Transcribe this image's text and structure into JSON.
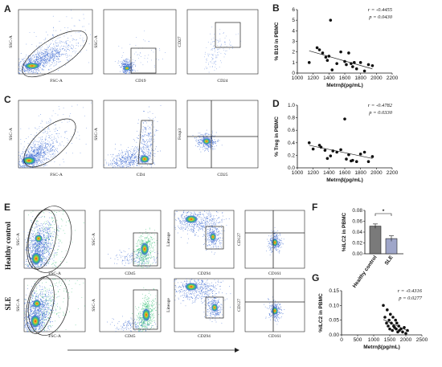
{
  "panels": {
    "A": {
      "letter": "A",
      "plots": [
        {
          "xlabel": "FSC-A",
          "ylabel": "SSC-A"
        },
        {
          "xlabel": "CD19",
          "ylabel": "SSC-A"
        },
        {
          "xlabel": "CD24",
          "ylabel": "CD27"
        }
      ]
    },
    "C": {
      "letter": "C",
      "plots": [
        {
          "xlabel": "FSC-A",
          "ylabel": "SSC-A"
        },
        {
          "xlabel": "CD4",
          "ylabel": "SSC-A"
        },
        {
          "xlabel": "CD25",
          "ylabel": "Foxp3"
        }
      ]
    },
    "E": {
      "letter": "E",
      "row_labels": [
        "Healthy control",
        "SLE"
      ],
      "plots": [
        {
          "xlabel": "FSC-A",
          "ylabel": "SSC-A"
        },
        {
          "xlabel": "CD45",
          "ylabel": "SSC-A"
        },
        {
          "xlabel": "CD294",
          "ylabel": "Lineage"
        },
        {
          "xlabel": "CD161",
          "ylabel": "CD127"
        }
      ]
    },
    "B": {
      "letter": "B"
    },
    "D": {
      "letter": "D"
    },
    "F": {
      "letter": "F"
    },
    "G": {
      "letter": "G"
    }
  },
  "chart_data": [
    {
      "panel": "B",
      "type": "scatter",
      "xlabel": "Metrnβ(pg/mL)",
      "ylabel": "% B10 in PBMC",
      "xlim": [
        1000,
        2200
      ],
      "ylim": [
        0,
        6
      ],
      "xticks": [
        1000,
        1200,
        1400,
        1600,
        1800,
        2000,
        2200
      ],
      "yticks": [
        0,
        1,
        2,
        3,
        4,
        5,
        6
      ],
      "annotation": {
        "r": "r = -0.4455",
        "p": "p = 0.0430"
      },
      "x": [
        1150,
        1250,
        1280,
        1320,
        1360,
        1380,
        1400,
        1420,
        1440,
        1500,
        1550,
        1600,
        1620,
        1650,
        1680,
        1700,
        1720,
        1750,
        1800,
        1850,
        1900,
        1950
      ],
      "y": [
        1.0,
        2.4,
        2.2,
        1.9,
        1.5,
        1.2,
        1.6,
        5.0,
        0.3,
        0.9,
        2.0,
        1.1,
        0.8,
        1.9,
        0.9,
        0.6,
        1.0,
        0.4,
        1.0,
        0.2,
        0.8,
        0.7
      ],
      "fit": {
        "x": [
          1150,
          1950
        ],
        "y": [
          2.1,
          0.4
        ]
      }
    },
    {
      "panel": "D",
      "type": "scatter",
      "xlabel": "Metrnβ(pg/mL)",
      "ylabel": "% Treg in PBMC",
      "xlim": [
        1000,
        2200
      ],
      "ylim": [
        0,
        1.0
      ],
      "xticks": [
        1000,
        1200,
        1400,
        1600,
        1800,
        2000,
        2200
      ],
      "yticks": [
        0.0,
        0.2,
        0.4,
        0.6,
        0.8,
        1.0
      ],
      "annotation": {
        "r": "r = -0.4782",
        "p": "p = 0.0330"
      },
      "x": [
        1150,
        1200,
        1280,
        1300,
        1350,
        1380,
        1420,
        1450,
        1500,
        1550,
        1600,
        1620,
        1650,
        1680,
        1700,
        1750,
        1800,
        1850,
        1900,
        1950
      ],
      "y": [
        0.4,
        0.3,
        0.36,
        0.33,
        0.28,
        0.15,
        0.19,
        0.27,
        0.25,
        0.29,
        0.78,
        0.14,
        0.21,
        0.11,
        0.12,
        0.1,
        0.22,
        0.25,
        0.1,
        0.18
      ],
      "fit": {
        "x": [
          1150,
          1950
        ],
        "y": [
          0.36,
          0.15
        ]
      }
    },
    {
      "panel": "F",
      "type": "bar",
      "ylabel": "%ILC2 in PBMC",
      "categories": [
        "Healthy control",
        "SLE"
      ],
      "values": [
        0.051,
        0.028
      ],
      "errors": [
        0.004,
        0.005
      ],
      "ylim": [
        0,
        0.08
      ],
      "yticks": [
        0.0,
        0.02,
        0.04,
        0.06,
        0.08
      ],
      "significance": "*",
      "colors": [
        "#7a7a7a",
        "#9fa6c9"
      ]
    },
    {
      "panel": "G",
      "type": "scatter",
      "xlabel": "Metrnβ(pg/mL)",
      "ylabel": "%ILC2 in PBMC",
      "xlim": [
        0,
        2500
      ],
      "ylim": [
        0,
        0.15
      ],
      "xticks": [
        0,
        500,
        1000,
        1500,
        2000,
        2500
      ],
      "yticks": [
        0.0,
        0.05,
        0.1,
        0.15
      ],
      "annotation": {
        "r": "r = -0.4316",
        "p": "p = 0.0277"
      },
      "x": [
        1300,
        1350,
        1400,
        1420,
        1450,
        1480,
        1500,
        1520,
        1550,
        1580,
        1600,
        1620,
        1650,
        1680,
        1700,
        1720,
        1750,
        1780,
        1800,
        1850,
        1900,
        1950,
        2000,
        2050
      ],
      "y": [
        0.1,
        0.06,
        0.04,
        0.085,
        0.03,
        0.05,
        0.02,
        0.07,
        0.04,
        0.015,
        0.06,
        0.03,
        0.025,
        0.05,
        0.02,
        0.04,
        0.01,
        0.03,
        0.015,
        0.02,
        0.01,
        0.025,
        0.005,
        0.015
      ],
      "fit": {
        "x": [
          1300,
          2100
        ],
        "y": [
          0.052,
          0.012
        ]
      }
    }
  ]
}
